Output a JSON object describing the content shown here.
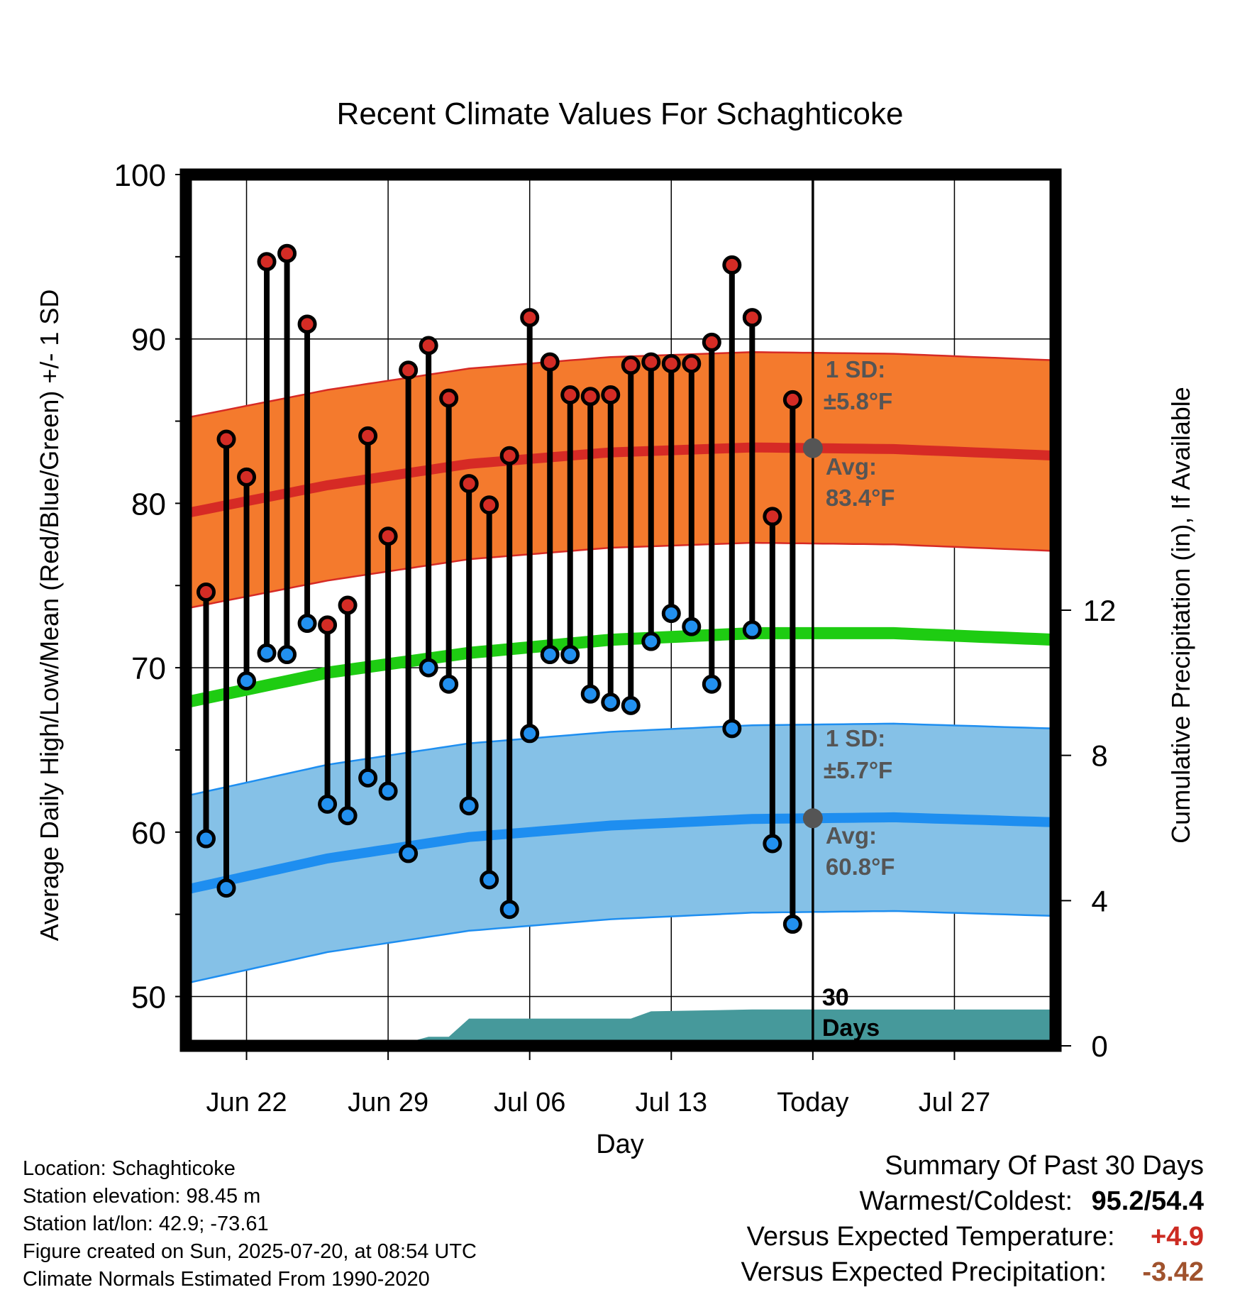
{
  "title": "Recent Climate Values For Schaghticoke",
  "chart_data": {
    "type": "line",
    "title": "Recent Climate Values For Schaghticoke",
    "xlabel": "Day",
    "ylabel": "Average Daily High/Low/Mean (Red/Blue/Green) +/- 1 SD",
    "ylabel_right": "Cumulative Precipitation (in), If Available",
    "ylim": [
      47,
      100
    ],
    "ylim_right": [
      0,
      24
    ],
    "yticks": [
      "50",
      "60",
      "70",
      "80",
      "90",
      "100"
    ],
    "yticks_right": [
      "0",
      "4",
      "8",
      "12"
    ],
    "x_range": [
      "2025-06-19",
      "2025-08-01"
    ],
    "x_tick_dates": [
      "2025-06-22",
      "2025-06-29",
      "2025-07-06",
      "2025-07-13",
      "2025-07-20",
      "2025-07-27"
    ],
    "x_tick_labels": [
      "Jun 22",
      "Jun 29",
      "Jul 06",
      "Jul 13",
      "Today",
      "Jul 27"
    ],
    "grid": true,
    "today": "2025-07-20",
    "days": [
      "2025-06-20",
      "2025-06-21",
      "2025-06-22",
      "2025-06-23",
      "2025-06-24",
      "2025-06-25",
      "2025-06-26",
      "2025-06-27",
      "2025-06-28",
      "2025-06-29",
      "2025-06-30",
      "2025-07-01",
      "2025-07-02",
      "2025-07-03",
      "2025-07-04",
      "2025-07-05",
      "2025-07-06",
      "2025-07-07",
      "2025-07-08",
      "2025-07-09",
      "2025-07-10",
      "2025-07-11",
      "2025-07-12",
      "2025-07-13",
      "2025-07-14",
      "2025-07-15",
      "2025-07-16",
      "2025-07-17",
      "2025-07-18",
      "2025-07-19"
    ],
    "daily_high": [
      74.6,
      83.9,
      81.6,
      94.7,
      95.2,
      90.9,
      72.6,
      73.8,
      84.1,
      78.0,
      88.1,
      89.6,
      86.4,
      81.2,
      79.9,
      82.9,
      91.3,
      88.6,
      86.6,
      86.5,
      86.6,
      88.4,
      88.6,
      88.5,
      88.5,
      89.8,
      94.5,
      91.3,
      79.2,
      86.3
    ],
    "daily_low": [
      59.6,
      56.6,
      69.2,
      70.9,
      70.8,
      72.7,
      61.7,
      61.0,
      63.3,
      62.5,
      58.7,
      70.0,
      69.0,
      61.6,
      57.1,
      55.3,
      66.0,
      70.8,
      70.8,
      68.4,
      67.9,
      67.7,
      71.6,
      73.3,
      72.5,
      69.0,
      66.3,
      72.3,
      59.3,
      54.4
    ],
    "normal_dates": [
      "2025-06-19",
      "2025-06-26",
      "2025-07-03",
      "2025-07-10",
      "2025-07-17",
      "2025-07-24",
      "2025-08-01"
    ],
    "normal_high": [
      79.4,
      81.1,
      82.4,
      83.1,
      83.4,
      83.3,
      82.9
    ],
    "normal_low": [
      56.5,
      58.4,
      59.7,
      60.4,
      60.8,
      60.9,
      60.6
    ],
    "normal_mean": [
      67.9,
      69.7,
      70.9,
      71.7,
      72.1,
      72.1,
      71.7
    ],
    "sd_high": 5.8,
    "sd_low": 5.7,
    "precip_dates": [
      "2025-06-19",
      "2025-06-29",
      "2025-06-30",
      "2025-07-01",
      "2025-07-02",
      "2025-07-03",
      "2025-07-11",
      "2025-07-12",
      "2025-07-17",
      "2025-07-20"
    ],
    "cumulative_precip": [
      0,
      0,
      0.1,
      0.25,
      0.25,
      0.75,
      0.75,
      0.95,
      1.0,
      1.0
    ],
    "series_colors": {
      "high_band": "#f47a2d",
      "high_line": "#d62a25",
      "high_point": "#d42c25",
      "low_band": "#85c1e7",
      "low_line": "#1e8ef0",
      "low_point": "#2290ef",
      "mean_line": "#1ecc12",
      "precip_fill": "#46999b",
      "avg_marker": "#555555"
    },
    "annotations": {
      "high_sd_label": "1 SD:",
      "high_sd_value": "±5.8°F",
      "high_avg_label": "Avg:",
      "high_avg_value": "83.4°F",
      "low_sd_label": "1 SD:",
      "low_sd_value": "±5.7°F",
      "low_avg_label": "Avg:",
      "low_avg_value": "60.8°F",
      "window_line1": "30",
      "window_line2": "Days"
    }
  },
  "footer": {
    "location": "Location: Schaghticoke",
    "elevation": "Station elevation: 98.45 m",
    "latlon": "Station lat/lon: 42.9; -73.61",
    "created": "Figure created on Sun, 2025-07-20, at 08:54 UTC",
    "normals": "Climate Normals Estimated From 1990-2020"
  },
  "summary": {
    "title": "Summary Of Past 30 Days",
    "warm_cold_label": "Warmest/Coldest:",
    "warm_cold_value": "95.2/54.4",
    "temp_label": "Versus Expected Temperature:",
    "temp_value": "+4.9",
    "temp_color": "#cc2b22",
    "precip_label": "Versus Expected Precipitation:",
    "precip_value": "-3.42",
    "precip_color": "#a0522d"
  }
}
